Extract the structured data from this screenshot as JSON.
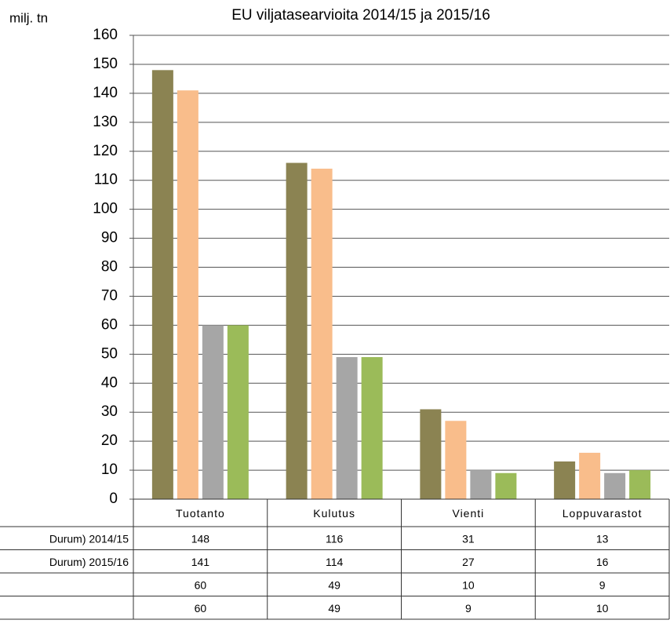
{
  "chart_data": {
    "type": "bar",
    "title": "EU viljatasearvioita  2014/15  ja 2015/16",
    "y_label": "milj. tn",
    "categories": [
      "Tuotanto",
      "Kulutus",
      "Vienti",
      "Loppuvarastot"
    ],
    "series": [
      {
        "name": "Durum) 2014/15",
        "color": "#8b8352",
        "values": [
          148,
          116,
          31,
          13
        ]
      },
      {
        "name": "Durum) 2015/16",
        "color": "#f9bd8b",
        "values": [
          141,
          114,
          27,
          16
        ]
      },
      {
        "name": null,
        "color": "#a6a6a6",
        "values": [
          60,
          49,
          10,
          9
        ]
      },
      {
        "name": null,
        "color": "#9bbb59",
        "values": [
          60,
          49,
          9,
          10
        ]
      }
    ],
    "ylim": [
      0,
      160
    ],
    "yticks": [
      0,
      10,
      20,
      30,
      40,
      50,
      60,
      70,
      80,
      90,
      100,
      110,
      120,
      130,
      140,
      150,
      160
    ],
    "grid": true
  }
}
